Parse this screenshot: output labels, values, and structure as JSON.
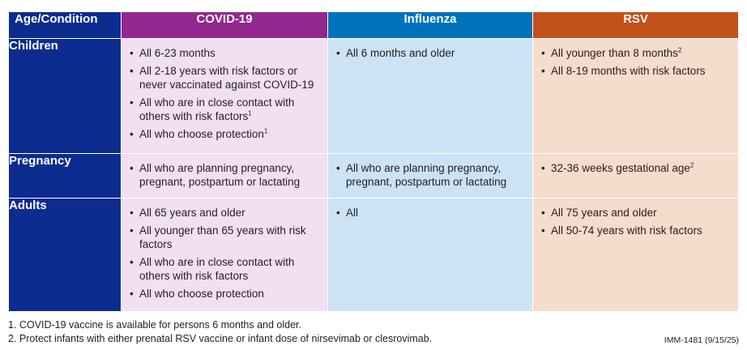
{
  "header": {
    "age_condition": "Age/Condition",
    "covid": "COVID-19",
    "influenza": "Influenza",
    "rsv": "RSV"
  },
  "colors": {
    "age_column": "#0d2c8f",
    "covid_header": "#92278f",
    "influenza_header": "#0072bc",
    "rsv_header": "#c1521a",
    "covid_cell": "#f2dff1",
    "influenza_cell": "#cce3f5",
    "rsv_cell": "#f6dccd"
  },
  "rows": [
    {
      "label": "Children",
      "covid": [
        {
          "text": "All 6-23 months",
          "sup": ""
        },
        {
          "text": "All 2-18 years with risk factors or never vaccinated against COVID-19",
          "sup": ""
        },
        {
          "text": "All who are in close contact with others with risk factors",
          "sup": "1"
        },
        {
          "text": "All who choose protection",
          "sup": "1"
        }
      ],
      "influenza": [
        {
          "text": "All 6 months and older",
          "sup": ""
        }
      ],
      "rsv": [
        {
          "text": "All younger than 8 months",
          "sup": "2"
        },
        {
          "text": "All 8-19 months with risk factors",
          "sup": ""
        }
      ]
    },
    {
      "label": "Pregnancy",
      "covid": [
        {
          "text": "All who are planning pregnancy, pregnant, postpartum or lactating",
          "sup": ""
        }
      ],
      "influenza": [
        {
          "text": "All who are planning pregnancy, pregnant, postpartum or lactating",
          "sup": ""
        }
      ],
      "rsv": [
        {
          "text": "32-36 weeks gestational age",
          "sup": "2"
        }
      ]
    },
    {
      "label": "Adults",
      "covid": [
        {
          "text": "All 65 years and older",
          "sup": ""
        },
        {
          "text": "All younger than 65 years with risk factors",
          "sup": ""
        },
        {
          "text": "All who are in close contact with others with risk factors",
          "sup": ""
        },
        {
          "text": "All who choose protection",
          "sup": ""
        }
      ],
      "influenza": [
        {
          "text": "All",
          "sup": ""
        }
      ],
      "rsv": [
        {
          "text": "All 75 years and older",
          "sup": ""
        },
        {
          "text": "All 50-74 years with risk factors",
          "sup": ""
        }
      ]
    }
  ],
  "bullet": "•",
  "footnotes": [
    "1. COVID-19 vaccine is available for persons 6 months and older.",
    "2. Protect infants with either prenatal RSV vaccine or infant dose of nirsevimab or clesrovimab."
  ],
  "doc_code": "IMM-1481 (9/15/25)"
}
